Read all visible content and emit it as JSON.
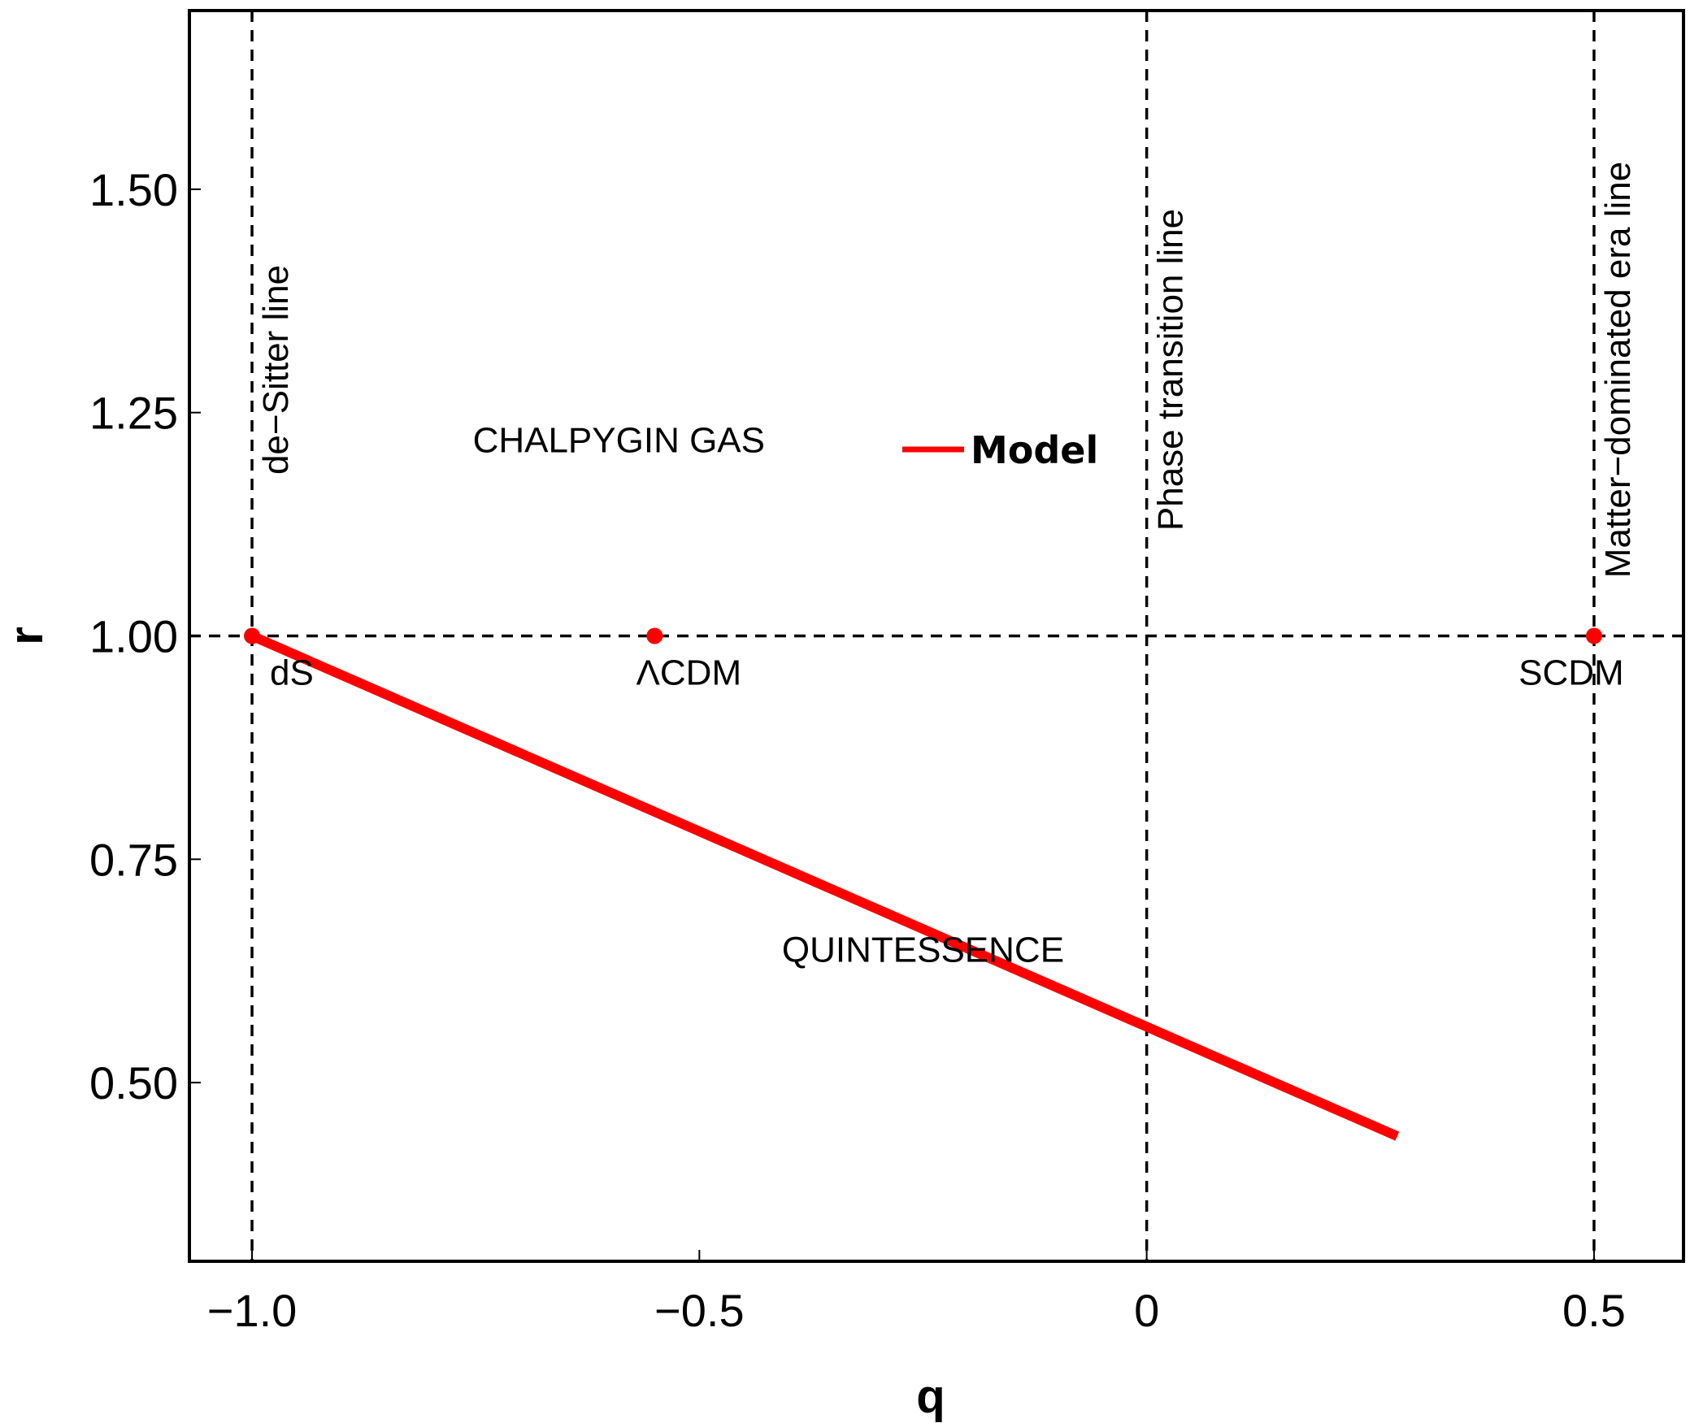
{
  "chart_data": {
    "type": "line",
    "title": "",
    "xlabel": "q",
    "ylabel": "r",
    "xlim": [
      -1.07,
      0.6
    ],
    "ylim": [
      0.3,
      1.7
    ],
    "xticks": [
      -1.0,
      -0.5,
      0,
      0.5
    ],
    "xtick_labels": [
      "−1.0",
      "−0.5",
      "0",
      "0.5"
    ],
    "yticks": [
      0.5,
      0.75,
      1.0,
      1.25,
      1.5
    ],
    "ytick_labels": [
      "0.50",
      "0.75",
      "1.00",
      "1.25",
      "1.50"
    ],
    "grid": false,
    "series": [
      {
        "name": "Model",
        "color": "#ff0000",
        "x": [
          -1.0,
          0.28
        ],
        "y": [
          1.0,
          0.44
        ]
      }
    ],
    "reference_lines": [
      {
        "orientation": "vertical",
        "value": -1.0,
        "label": "de−Sitter line"
      },
      {
        "orientation": "vertical",
        "value": 0,
        "label": "Phase transition line"
      },
      {
        "orientation": "vertical",
        "value": 0.5,
        "label": "Matter−dominated era line"
      },
      {
        "orientation": "horizontal",
        "value": 1.0,
        "label": ""
      }
    ],
    "points": [
      {
        "name": "dS",
        "label": "dS",
        "x": -1.0,
        "y": 1.0,
        "color": "#ff0000"
      },
      {
        "name": "lcdm",
        "label": "ΛCDM",
        "x": -0.55,
        "y": 1.0,
        "color": "#ff0000"
      },
      {
        "name": "scdm",
        "label": "SCDM",
        "x": 0.5,
        "y": 1.0,
        "color": "#ff0000"
      }
    ],
    "regions": [
      {
        "name": "chaplygin",
        "label": "CHALPYGIN GAS",
        "x": -0.59,
        "y": 1.22
      },
      {
        "name": "quintessence",
        "label": "QUINTESSENCE",
        "x": -0.25,
        "y": 0.65
      }
    ],
    "legend": {
      "label": "Model",
      "color": "#ff0000",
      "position": "top-center"
    }
  }
}
